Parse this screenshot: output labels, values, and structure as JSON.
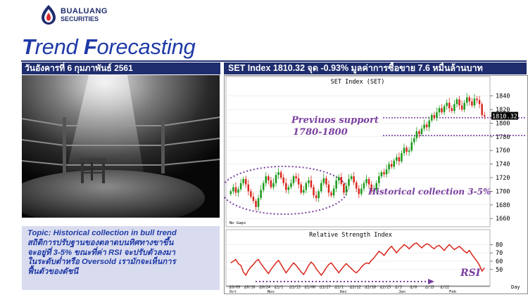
{
  "brand": {
    "name_line1": "BUALUANG",
    "name_line2": "SECURITIES",
    "colors": {
      "navy": "#1f2d6e",
      "red": "#e1262d"
    }
  },
  "header": {
    "title_t_cap": "T",
    "title_t_rest": "rend ",
    "title_f_cap": "F",
    "title_f_rest": "orecasting"
  },
  "date_bar": "วันอังคารที่ 6 กุมภาพันธ์ 2561",
  "index_bar": "SET Index 1810.32 จุด -0.93% มูลค่าการซื้อขาย 7.6 หมื่นล้านบาท",
  "photo": {
    "icon": "boxing-ring-stool-icon"
  },
  "topic": {
    "lines": [
      "Topic: Historical collection in bull trend",
      "สถิติการปรับฐานของตลาดบนทิศทางขาขึ้น",
      "จะอยู่ที่ 3-5% ขณะที่ค่า RSI จะปรับตัวลงมา",
      "ในระดับต่ำหรือ Oversold  เรามักจะเห็นการ",
      "ฟื้นตัวของดัชนี"
    ]
  },
  "chart_data": [
    {
      "type": "candlestick",
      "title": "SET Index (SET)",
      "ylim": [
        1652,
        1852
      ],
      "yticks": [
        1660,
        1680,
        1700,
        1720,
        1740,
        1760,
        1780,
        1800,
        1820,
        1840
      ],
      "last_value": "1810.32",
      "footnote": "No Gaps",
      "annotations": {
        "support_label_1": "Previuos support",
        "support_label_2": "1780-1800",
        "collection_label": "Historical collection 3-5%",
        "support_upper": 1808,
        "support_lower": 1782
      },
      "colors": {
        "up": "#1a9a1a",
        "down": "#d9261c",
        "annotation": "#7b3fa0",
        "line": "#7b3fa0"
      },
      "close": [
        1700,
        1706,
        1698,
        1703,
        1712,
        1718,
        1710,
        1700,
        1692,
        1686,
        1677,
        1690,
        1702,
        1712,
        1722,
        1716,
        1706,
        1712,
        1724,
        1728,
        1720,
        1712,
        1702,
        1706,
        1712,
        1722,
        1719,
        1710,
        1698,
        1702,
        1712,
        1716,
        1706,
        1694,
        1690,
        1700,
        1712,
        1719,
        1710,
        1698,
        1694,
        1704,
        1716,
        1721,
        1711,
        1698,
        1708,
        1718,
        1722,
        1713,
        1704,
        1696,
        1704,
        1712,
        1718,
        1710,
        1700,
        1702,
        1712,
        1722,
        1728,
        1725,
        1732,
        1740,
        1736,
        1745,
        1750,
        1744,
        1756,
        1764,
        1758,
        1760,
        1772,
        1778,
        1788,
        1784,
        1792,
        1798,
        1794,
        1804,
        1812,
        1808,
        1816,
        1822,
        1816,
        1825,
        1830,
        1822,
        1818,
        1828,
        1835,
        1826,
        1820,
        1830,
        1838,
        1832,
        1826,
        1836,
        1834,
        1828,
        1812,
        1810
      ]
    },
    {
      "type": "line",
      "title": "Relative Strength Index",
      "ylim": [
        32,
        88
      ],
      "yticks": [
        50,
        60,
        70,
        80
      ],
      "series_label": "RSI",
      "x_labels": [
        "10/09",
        "10/16",
        "10/24",
        "11/1",
        "11/13",
        "11/06",
        "11/27",
        "12/1",
        "12/12",
        "12/18",
        "12/25",
        "1/3",
        "1/8",
        "1/15",
        "1/22"
      ],
      "month_labels": [
        "Oct",
        "Nov",
        "Dec",
        "Jan",
        "Feb"
      ],
      "day_label": "Day",
      "values": [
        58,
        60,
        62,
        57,
        55,
        47,
        43,
        49,
        53,
        56,
        60,
        62,
        57,
        53,
        49,
        45,
        50,
        54,
        58,
        61,
        56,
        51,
        46,
        50,
        54,
        58,
        55,
        51,
        47,
        44,
        49,
        55,
        59,
        56,
        51,
        47,
        43,
        47,
        52,
        56,
        58,
        54,
        50,
        46,
        50,
        54,
        57,
        54,
        51,
        48,
        46,
        49,
        53,
        56,
        58,
        57,
        61,
        64,
        68,
        72,
        70,
        67,
        71,
        75,
        78,
        74,
        70,
        74,
        77,
        80,
        78,
        75,
        78,
        81,
        82,
        79,
        76,
        79,
        81,
        80,
        77,
        75,
        78,
        79,
        76,
        73,
        77,
        80,
        77,
        74,
        76,
        78,
        75,
        72,
        70,
        73,
        68,
        64,
        60,
        55,
        48,
        52
      ]
    }
  ]
}
